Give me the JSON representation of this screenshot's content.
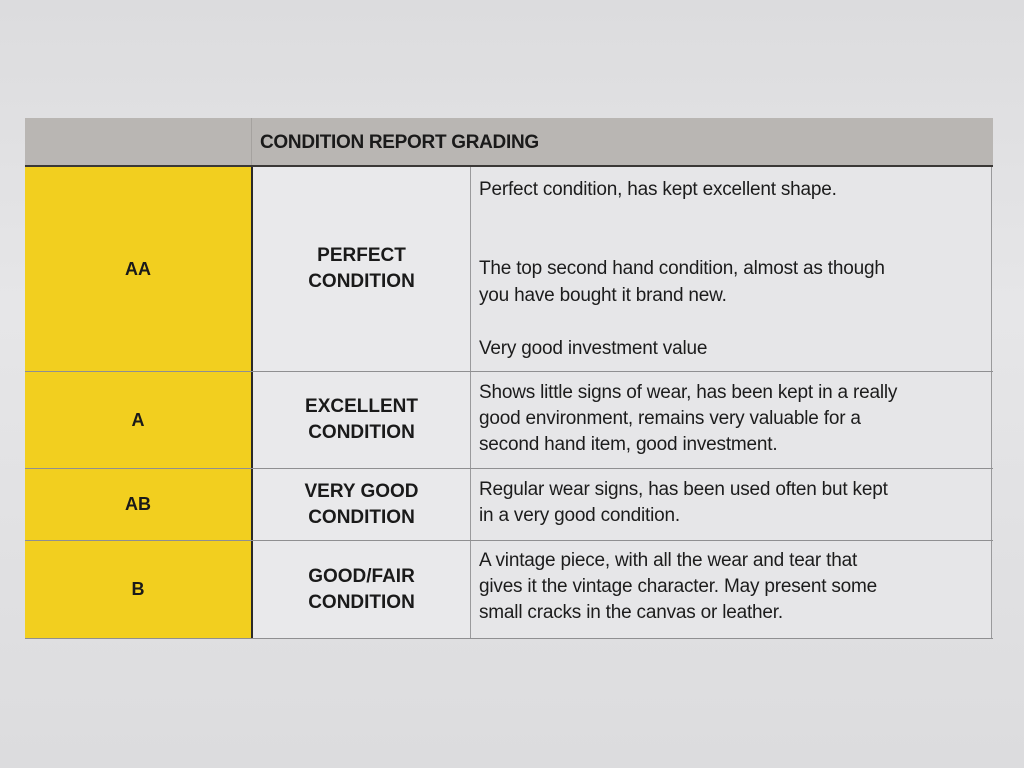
{
  "header": {
    "title": "CONDITION REPORT GRADING"
  },
  "colors": {
    "grade_bg": "#f2cf1f",
    "header_bg": "#b9b6b3"
  },
  "rows": [
    {
      "grade": "AA",
      "condition": [
        "PERFECT",
        "CONDITION"
      ],
      "description": [
        "Perfect condition, has kept excellent shape.",
        "The top second hand condition, almost as though",
        "you have bought it brand new.",
        "Very good investment value"
      ]
    },
    {
      "grade": "A",
      "condition": [
        "EXCELLENT",
        "CONDITION"
      ],
      "description": [
        "Shows little signs of wear, has been kept in a really",
        "good environment, remains very valuable for a",
        "second hand item, good investment."
      ]
    },
    {
      "grade": "AB",
      "condition": [
        "VERY GOOD",
        "CONDITION"
      ],
      "description": [
        "Regular wear signs, has been used often but kept",
        "in a very good condition."
      ]
    },
    {
      "grade": "B",
      "condition": [
        "GOOD/FAIR",
        "CONDITION"
      ],
      "description": [
        "A vintage piece, with all the wear and tear that",
        "gives it the vintage character. May present some",
        "small cracks in the canvas or leather."
      ]
    }
  ]
}
